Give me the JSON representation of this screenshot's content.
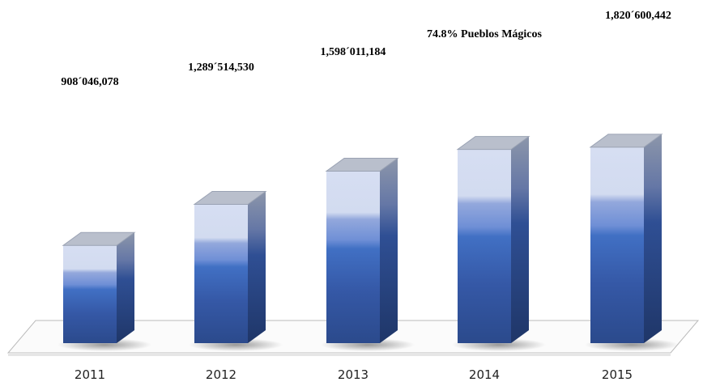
{
  "chart_data": {
    "type": "bar3d",
    "categories": [
      "2011",
      "2012",
      "2013",
      "2014",
      "2015"
    ],
    "values": [
      908046078,
      1289514530,
      1598011184,
      1800000000,
      1820600442
    ],
    "value_labels": [
      "908´046,078",
      "1,289´514,530",
      "1,598´011,184",
      null,
      "1,820´600,442"
    ],
    "annotations": [
      "74.8% Pueblos Mágicos"
    ],
    "color": "#3b66b8"
  }
}
